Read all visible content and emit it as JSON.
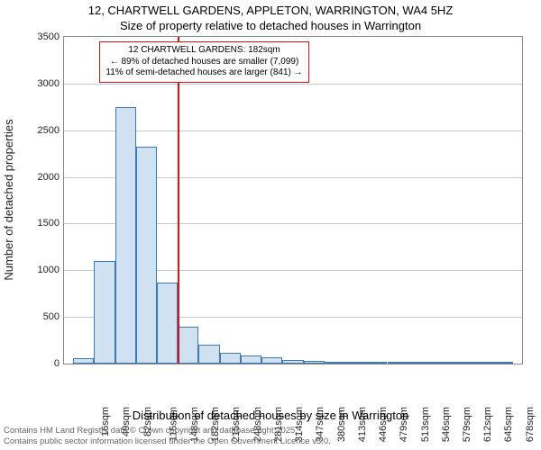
{
  "title_line1": "12, CHARTWELL GARDENS, APPLETON, WARRINGTON, WA4 5HZ",
  "title_line2": "Size of property relative to detached houses in Warrington",
  "y_axis_label": "Number of detached properties",
  "x_axis_label": "Distribution of detached houses by size in Warrington",
  "footer_line1": "Contains HM Land Registry data © Crown copyright and database right 2025.",
  "footer_line2": "Contains public sector information licensed under the Open Government Licence v3.0.",
  "annotation": {
    "line1": "12 CHARTWELL GARDENS: 182sqm",
    "line2": "← 89% of detached houses are smaller (7,099)",
    "line3": "11% of semi-detached houses are larger (841) →"
  },
  "chart": {
    "type": "histogram",
    "bar_fill": "#d0e2f2",
    "bar_stroke": "#3d79b5",
    "marker_line_color": "#d11",
    "annotation_border": "#d11",
    "grid_color": "#c9c9c9",
    "background_color": "#ffffff",
    "font_family": "Arial",
    "title_fontsize": 13,
    "axis_label_fontsize": 13,
    "tick_fontsize": 11,
    "ylim": [
      0,
      3500
    ],
    "yticks": [
      0,
      500,
      1000,
      1500,
      2000,
      2500,
      3000,
      3500
    ],
    "x_unit": "sqm",
    "x_tick_values": [
      16,
      49,
      82,
      115,
      148,
      182,
      215,
      248,
      281,
      314,
      347,
      380,
      413,
      446,
      479,
      513,
      546,
      579,
      612,
      645,
      678
    ],
    "x_tick_labels": [
      "16sqm",
      "49sqm",
      "82sqm",
      "115sqm",
      "148sqm",
      "182sqm",
      "215sqm",
      "248sqm",
      "281sqm",
      "314sqm",
      "347sqm",
      "380sqm",
      "413sqm",
      "446sqm",
      "479sqm",
      "513sqm",
      "546sqm",
      "579sqm",
      "612sqm",
      "645sqm",
      "678sqm"
    ],
    "bin_width_sqm": 33,
    "bins": [
      {
        "x": 16,
        "count": 60
      },
      {
        "x": 49,
        "count": 1100
      },
      {
        "x": 82,
        "count": 2750
      },
      {
        "x": 115,
        "count": 2320
      },
      {
        "x": 148,
        "count": 870
      },
      {
        "x": 182,
        "count": 400
      },
      {
        "x": 215,
        "count": 200
      },
      {
        "x": 248,
        "count": 120
      },
      {
        "x": 281,
        "count": 90
      },
      {
        "x": 314,
        "count": 70
      },
      {
        "x": 347,
        "count": 40
      },
      {
        "x": 380,
        "count": 30
      },
      {
        "x": 413,
        "count": 20
      },
      {
        "x": 446,
        "count": 10
      },
      {
        "x": 479,
        "count": 7
      },
      {
        "x": 513,
        "count": 5
      },
      {
        "x": 546,
        "count": 3
      },
      {
        "x": 579,
        "count": 3
      },
      {
        "x": 612,
        "count": 2
      },
      {
        "x": 645,
        "count": 2
      },
      {
        "x": 678,
        "count": 2
      }
    ],
    "marker_value_sqm": 182
  }
}
